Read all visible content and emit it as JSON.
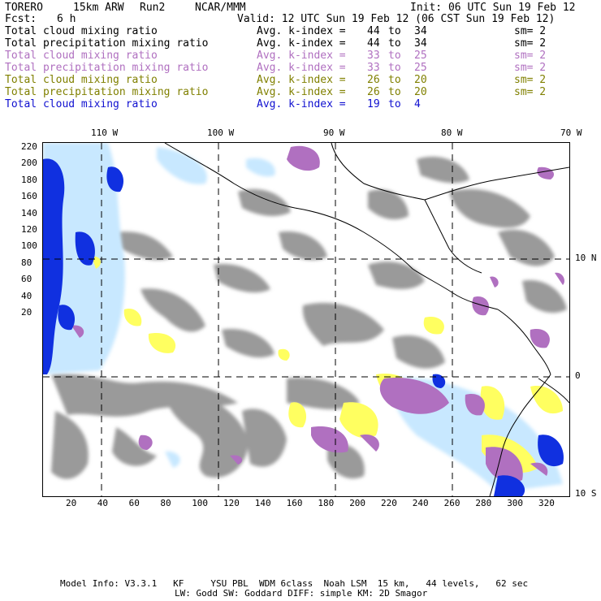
{
  "header": {
    "model": "TORERO",
    "resolution": "15km ARW",
    "run": "Run2",
    "org": "NCAR/MMM",
    "init": "Init: 06 UTC Sun 19 Feb 12",
    "fcst_label": "Fcst:",
    "fcst_value": "6 h",
    "valid": "Valid: 12 UTC Sun 19 Feb 12 (06 CST Sun 19 Feb 12)"
  },
  "legend": [
    {
      "field": "Total cloud mixing ratio",
      "k_label": "Avg. k-index =",
      "k_from": "44",
      "to": "to",
      "k_to": "34",
      "sm": "sm= 2",
      "color": "#000000"
    },
    {
      "field": "Total precipitation mixing ratio",
      "k_label": "Avg. k-index =",
      "k_from": "44",
      "to": "to",
      "k_to": "34",
      "sm": "sm= 2",
      "color": "#000000"
    },
    {
      "field": "Total cloud mixing ratio",
      "k_label": "Avg. k-index =",
      "k_from": "33",
      "to": "to",
      "k_to": "25",
      "sm": "sm= 2",
      "color": "#b070c0"
    },
    {
      "field": "Total precipitation mixing ratio",
      "k_label": "Avg. k-index =",
      "k_from": "33",
      "to": "to",
      "k_to": "25",
      "sm": "sm= 2",
      "color": "#b070c0"
    },
    {
      "field": "Total cloud mixing ratio",
      "k_label": "Avg. k-index =",
      "k_from": "26",
      "to": "to",
      "k_to": "20",
      "sm": "sm= 2",
      "color": "#808000"
    },
    {
      "field": "Total precipitation mixing ratio",
      "k_label": "Avg. k-index =",
      "k_from": "26",
      "to": "to",
      "k_to": "20",
      "sm": "sm= 2",
      "color": "#808000"
    },
    {
      "field": "Total cloud mixing ratio",
      "k_label": "Avg. k-index =",
      "k_from": "19",
      "to": "to",
      "k_to": "4",
      "sm": "",
      "color": "#1010d0"
    }
  ],
  "axes": {
    "top_lon": [
      "110 W",
      "100 W",
      "90 W",
      "80 W",
      "70 W"
    ],
    "right_lat": [
      "10 N",
      "0",
      "10 S"
    ],
    "left_y": [
      "220",
      "200",
      "180",
      "160",
      "140",
      "120",
      "100",
      "80",
      "60",
      "40",
      "20"
    ],
    "bottom_x": [
      "20",
      "40",
      "60",
      "80",
      "100",
      "120",
      "140",
      "160",
      "180",
      "200",
      "220",
      "240",
      "260",
      "280",
      "300",
      "320"
    ]
  },
  "colors": {
    "gray": "#9a9a9a",
    "purple": "#b070c0",
    "yellow": "#ffff60",
    "light_blue": "#c8e8ff",
    "blue": "#1030e0"
  },
  "footer": {
    "line1": "Model Info: V3.3.1   KF     YSU PBL  WDM 6class  Noah LSM  15 km,   44 levels,   62 sec",
    "line2": "LW: Godd SW: Goddard DIFF: simple KM: 2D Smagor"
  }
}
